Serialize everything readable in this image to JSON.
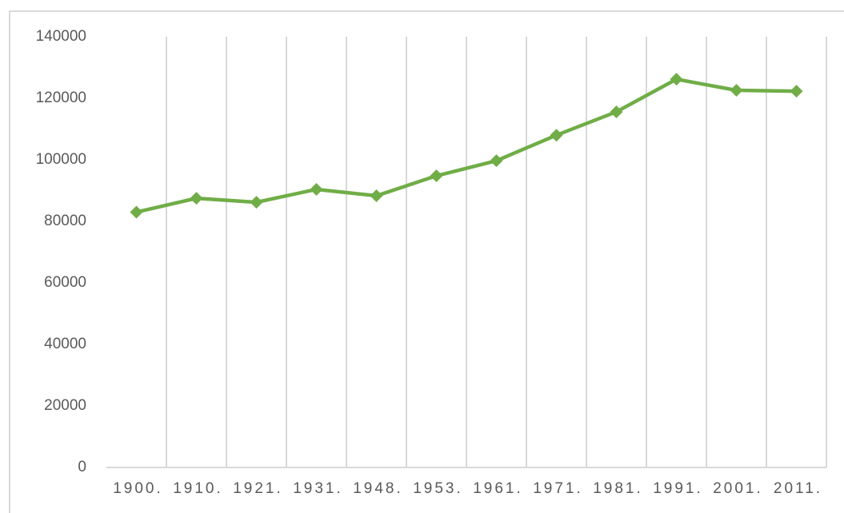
{
  "chart_data": {
    "type": "line",
    "categories": [
      "1900.",
      "1910.",
      "1921.",
      "1931.",
      "1948.",
      "1953.",
      "1961.",
      "1971.",
      "1981.",
      "1991.",
      "2001.",
      "2011."
    ],
    "values": [
      83000,
      87500,
      86200,
      90400,
      88300,
      94800,
      99700,
      108000,
      115600,
      126200,
      122600,
      122300
    ],
    "color": "#70ad47",
    "ylim": [
      0,
      140000
    ],
    "yticks": [
      0,
      20000,
      40000,
      60000,
      80000,
      100000,
      120000,
      140000
    ],
    "grid": true
  }
}
